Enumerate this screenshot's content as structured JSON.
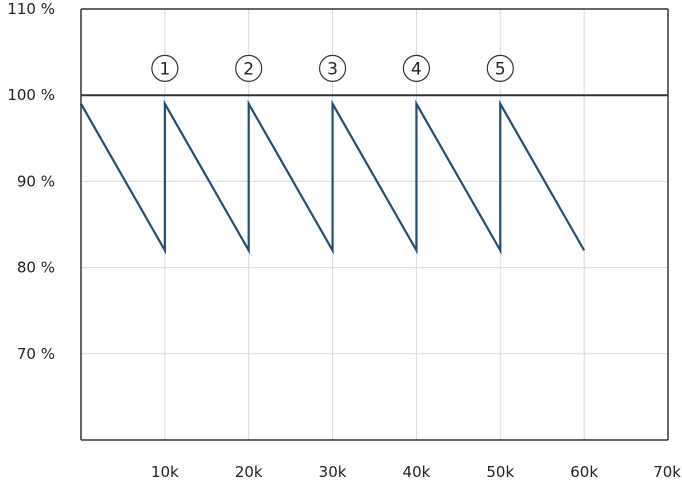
{
  "chart_data": {
    "type": "line",
    "title": "",
    "xlabel": "",
    "ylabel": "",
    "xlim": [
      0,
      70000
    ],
    "ylim": [
      60,
      110
    ],
    "grid": true,
    "x_ticks": [
      {
        "value": 10000,
        "label": "10k"
      },
      {
        "value": 20000,
        "label": "20k"
      },
      {
        "value": 30000,
        "label": "30k"
      },
      {
        "value": 40000,
        "label": "40k"
      },
      {
        "value": 50000,
        "label": "50k"
      },
      {
        "value": 60000,
        "label": "60k"
      },
      {
        "value": 70000,
        "label": "70k"
      }
    ],
    "y_ticks": [
      {
        "value": 70,
        "label": "70 %"
      },
      {
        "value": 80,
        "label": "80 %"
      },
      {
        "value": 90,
        "label": "90 %"
      },
      {
        "value": 100,
        "label": "100 %"
      },
      {
        "value": 110,
        "label": "110 %"
      }
    ],
    "reference_line": {
      "y": 100,
      "color": "#333333"
    },
    "series": [
      {
        "color": "#1f4e79",
        "points": [
          [
            0,
            99
          ],
          [
            10000,
            82
          ],
          [
            10000,
            99
          ],
          [
            20000,
            82
          ],
          [
            20000,
            99
          ],
          [
            30000,
            82
          ],
          [
            30000,
            99
          ],
          [
            40000,
            82
          ],
          [
            40000,
            99
          ],
          [
            50000,
            82
          ],
          [
            50000,
            99
          ],
          [
            60000,
            82
          ]
        ]
      }
    ],
    "annotations": [
      {
        "label": "1",
        "x": 10000,
        "y": 103
      },
      {
        "label": "2",
        "x": 20000,
        "y": 103
      },
      {
        "label": "3",
        "x": 30000,
        "y": 103
      },
      {
        "label": "4",
        "x": 40000,
        "y": 103
      },
      {
        "label": "5",
        "x": 50000,
        "y": 103
      }
    ]
  }
}
